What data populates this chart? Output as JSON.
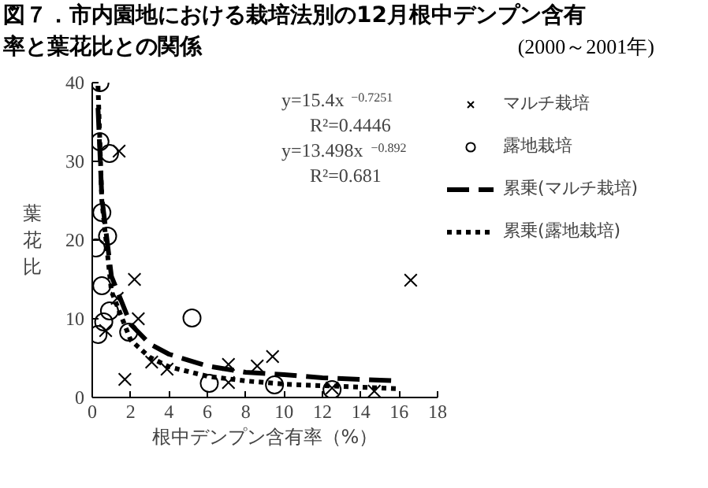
{
  "chart_data": {
    "type": "scatter",
    "title": "図７．市内園地における栽培法別の12月根中デンプン含有率と葉花比との関係",
    "subtitle": "(2000～2001年)",
    "xlabel": "根中デンプン含有率（%）",
    "ylabel": "葉花比",
    "xlim": [
      0,
      18
    ],
    "xticks": [
      0,
      2,
      4,
      6,
      8,
      10,
      12,
      14,
      16,
      18
    ],
    "ylim": [
      0,
      40
    ],
    "yticks": [
      0,
      10,
      20,
      30,
      40
    ],
    "grid": false,
    "legend": "right",
    "series": [
      {
        "name": "マルチ栽培",
        "marker": "cross",
        "color": "#000000",
        "x": [
          1.4,
          2.2,
          2.4,
          1.7,
          0.7,
          1.3,
          3.1,
          3.9,
          7.1,
          7.1,
          9.4,
          8.6,
          12.5,
          14.7,
          16.6
        ],
        "values": [
          31.3,
          15.0,
          10.0,
          2.3,
          8.5,
          12.6,
          4.5,
          3.6,
          4.2,
          1.9,
          5.2,
          4.0,
          1.2,
          0.8,
          14.9
        ]
      },
      {
        "name": "露地栽培",
        "marker": "circle",
        "color": "#000000",
        "x": [
          0.4,
          0.4,
          0.9,
          0.5,
          0.8,
          0.2,
          0.5,
          0.3,
          0.6,
          0.9,
          1.9,
          5.2,
          6.1,
          9.5,
          12.5
        ],
        "values": [
          40,
          32.5,
          31,
          23.5,
          20.5,
          19,
          14.2,
          8,
          9.6,
          11,
          8.3,
          10.1,
          1.8,
          1.6,
          1.0
        ]
      },
      {
        "name": "累乗(マルチ栽培)",
        "type": "line",
        "line_style": "dashed",
        "color": "#000000",
        "x": [
          0.3,
          0.5,
          1,
          2,
          3,
          4,
          6,
          8,
          10,
          12,
          14,
          16
        ],
        "values": [
          36.8,
          25.4,
          15.4,
          9.3,
          6.8,
          5.5,
          4.0,
          3.2,
          2.9,
          2.5,
          2.3,
          2.1
        ]
      },
      {
        "name": "累乗(露地栽培)",
        "type": "line",
        "line_style": "dotted",
        "color": "#000000",
        "x": [
          0.3,
          0.5,
          1,
          2,
          3,
          4,
          6,
          8,
          10,
          12,
          14,
          16
        ],
        "values": [
          39.6,
          25.0,
          13.5,
          7.3,
          5.1,
          3.9,
          2.7,
          2.1,
          1.7,
          1.5,
          1.3,
          1.1
        ]
      }
    ],
    "annotations": [
      "y=15.4x$^{−0.7251}$",
      "R²=0.4446",
      "y=13.498x$^{−0.892}$",
      "R²=0.681"
    ]
  }
}
